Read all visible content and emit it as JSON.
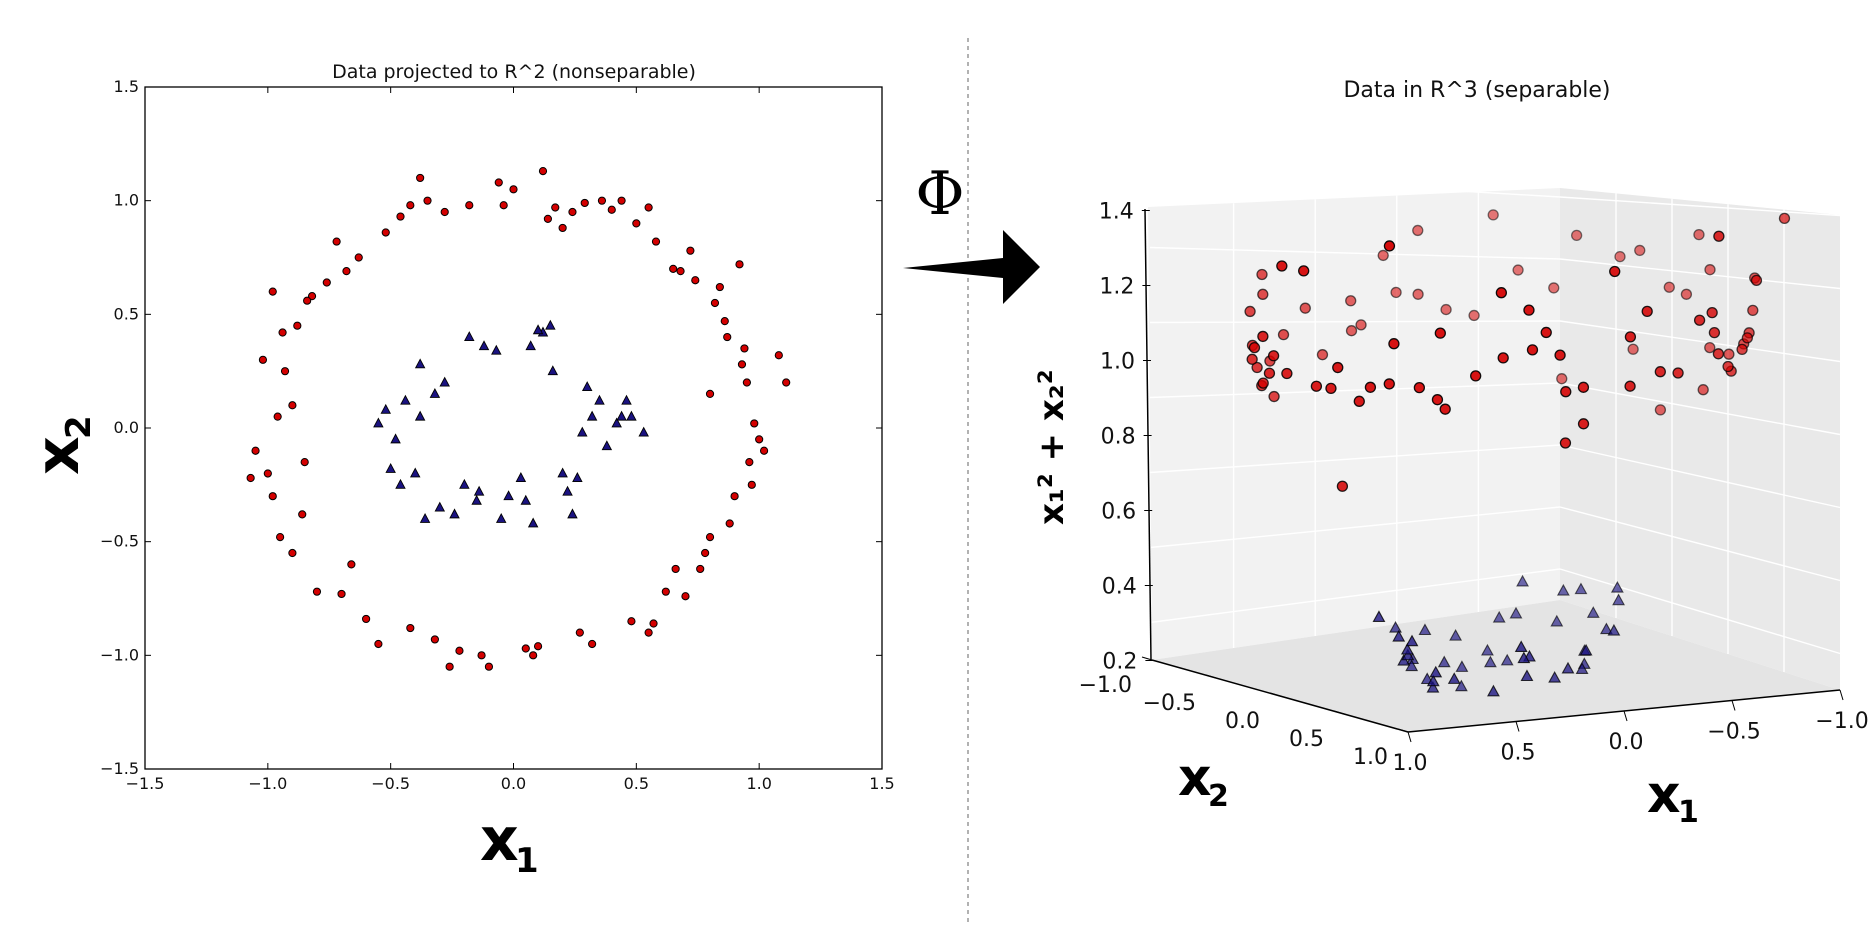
{
  "chart_data": [
    {
      "type": "scatter",
      "title": "Data projected to R^2 (nonseparable)",
      "xlabel": "x",
      "xlabel_sub": "1",
      "ylabel": "x",
      "ylabel_sub": "2",
      "xlim": [
        -1.5,
        1.5
      ],
      "ylim": [
        -1.5,
        1.5
      ],
      "xticks": [
        -1.5,
        -1.0,
        -0.5,
        0.0,
        0.5,
        1.0,
        1.5
      ],
      "yticks": [
        -1.5,
        -1.0,
        -0.5,
        0.0,
        0.5,
        1.0,
        1.5
      ],
      "xtick_labels": [
        "−1.5",
        "−1.0",
        "−0.5",
        "0.0",
        "0.5",
        "1.0",
        "1.5"
      ],
      "ytick_labels": [
        "−1.5",
        "−1.0",
        "−0.5",
        "0.0",
        "0.5",
        "1.0",
        "1.5"
      ],
      "grid": false,
      "series": [
        {
          "marker": "circle",
          "color": "#d40000",
          "points": [
            [
              1.11,
              0.2
            ],
            [
              1.08,
              0.32
            ],
            [
              1.02,
              -0.1
            ],
            [
              1.0,
              -0.05
            ],
            [
              0.98,
              0.02
            ],
            [
              0.97,
              -0.25
            ],
            [
              0.95,
              0.2
            ],
            [
              0.94,
              0.35
            ],
            [
              0.93,
              0.28
            ],
            [
              0.9,
              -0.3
            ],
            [
              0.88,
              -0.42
            ],
            [
              0.86,
              0.47
            ],
            [
              0.84,
              0.62
            ],
            [
              0.82,
              0.55
            ],
            [
              0.8,
              0.15
            ],
            [
              0.78,
              -0.55
            ],
            [
              0.76,
              -0.62
            ],
            [
              0.74,
              0.65
            ],
            [
              0.72,
              0.78
            ],
            [
              0.7,
              -0.74
            ],
            [
              0.68,
              0.69
            ],
            [
              0.65,
              0.7
            ],
            [
              0.62,
              -0.72
            ],
            [
              0.58,
              0.82
            ],
            [
              0.57,
              -0.86
            ],
            [
              0.55,
              0.97
            ],
            [
              0.5,
              0.9
            ],
            [
              0.48,
              -0.85
            ],
            [
              0.44,
              1.0
            ],
            [
              0.4,
              0.96
            ],
            [
              0.36,
              1.0
            ],
            [
              0.32,
              -0.95
            ],
            [
              0.29,
              0.99
            ],
            [
              0.27,
              -0.9
            ],
            [
              0.24,
              0.95
            ],
            [
              0.2,
              0.88
            ],
            [
              0.17,
              0.97
            ],
            [
              0.14,
              0.92
            ],
            [
              0.12,
              1.13
            ],
            [
              0.08,
              -1.0
            ],
            [
              0.05,
              -0.97
            ],
            [
              0.0,
              1.05
            ],
            [
              -0.04,
              0.98
            ],
            [
              -0.06,
              1.08
            ],
            [
              -0.1,
              -1.05
            ],
            [
              -0.13,
              -1.0
            ],
            [
              -0.18,
              0.98
            ],
            [
              -0.22,
              -0.98
            ],
            [
              -0.26,
              -1.05
            ],
            [
              -0.28,
              0.95
            ],
            [
              -0.32,
              -0.93
            ],
            [
              -0.35,
              1.0
            ],
            [
              -0.38,
              1.1
            ],
            [
              -0.42,
              0.98
            ],
            [
              -0.46,
              0.93
            ],
            [
              -0.52,
              0.86
            ],
            [
              -0.55,
              -0.95
            ],
            [
              -0.6,
              -0.84
            ],
            [
              -0.63,
              0.75
            ],
            [
              -0.68,
              0.69
            ],
            [
              -0.7,
              -0.73
            ],
            [
              -0.72,
              0.82
            ],
            [
              -0.76,
              0.64
            ],
            [
              -0.8,
              -0.72
            ],
            [
              -0.82,
              0.58
            ],
            [
              -0.84,
              0.56
            ],
            [
              -0.86,
              -0.38
            ],
            [
              -0.88,
              0.45
            ],
            [
              -0.9,
              -0.55
            ],
            [
              -0.93,
              0.25
            ],
            [
              -0.95,
              -0.48
            ],
            [
              -0.96,
              0.05
            ],
            [
              -0.98,
              -0.3
            ],
            [
              -1.0,
              -0.2
            ],
            [
              -1.02,
              0.3
            ],
            [
              -1.05,
              -0.1
            ],
            [
              -1.07,
              -0.22
            ],
            [
              -0.98,
              0.6
            ],
            [
              -0.94,
              0.42
            ],
            [
              -0.9,
              0.1
            ],
            [
              0.92,
              0.72
            ],
            [
              0.87,
              0.4
            ],
            [
              0.8,
              -0.48
            ],
            [
              0.66,
              -0.62
            ],
            [
              0.55,
              -0.9
            ],
            [
              0.1,
              -0.96
            ],
            [
              -0.42,
              -0.88
            ],
            [
              -0.66,
              -0.6
            ],
            [
              -0.85,
              -0.15
            ],
            [
              0.96,
              -0.15
            ]
          ]
        },
        {
          "marker": "triangle",
          "color": "#1a1280",
          "points": [
            [
              0.53,
              -0.02
            ],
            [
              0.48,
              0.05
            ],
            [
              0.46,
              0.12
            ],
            [
              0.42,
              0.02
            ],
            [
              0.38,
              -0.08
            ],
            [
              0.35,
              0.12
            ],
            [
              0.32,
              0.05
            ],
            [
              0.3,
              0.18
            ],
            [
              0.28,
              -0.02
            ],
            [
              0.26,
              -0.22
            ],
            [
              0.24,
              -0.38
            ],
            [
              0.22,
              -0.28
            ],
            [
              0.2,
              -0.2
            ],
            [
              0.16,
              0.25
            ],
            [
              0.15,
              0.45
            ],
            [
              0.12,
              0.42
            ],
            [
              0.1,
              0.43
            ],
            [
              0.07,
              0.36
            ],
            [
              0.05,
              -0.32
            ],
            [
              0.03,
              -0.22
            ],
            [
              -0.02,
              -0.3
            ],
            [
              -0.05,
              -0.4
            ],
            [
              -0.07,
              0.34
            ],
            [
              -0.12,
              0.36
            ],
            [
              -0.15,
              -0.32
            ],
            [
              -0.18,
              0.4
            ],
            [
              -0.2,
              -0.25
            ],
            [
              -0.24,
              -0.38
            ],
            [
              -0.28,
              0.2
            ],
            [
              -0.3,
              -0.35
            ],
            [
              -0.32,
              0.15
            ],
            [
              -0.36,
              -0.4
            ],
            [
              -0.38,
              0.28
            ],
            [
              -0.4,
              -0.2
            ],
            [
              -0.44,
              0.12
            ],
            [
              -0.46,
              -0.25
            ],
            [
              -0.48,
              -0.05
            ],
            [
              -0.5,
              -0.18
            ],
            [
              -0.52,
              0.08
            ],
            [
              -0.55,
              0.02
            ],
            [
              -0.14,
              -0.28
            ],
            [
              0.08,
              -0.42
            ],
            [
              0.44,
              0.05
            ],
            [
              -0.38,
              0.05
            ]
          ]
        }
      ]
    },
    {
      "type": "scatter",
      "title": "Data in R^3 (separable)",
      "xlabel": "x",
      "xlabel_sub": "1",
      "ylabel": "x",
      "ylabel_sub": "2",
      "zlabel": "x₁² + x₂²",
      "x_ticks": [
        1.0,
        0.5,
        0.0,
        -0.5,
        -1.0
      ],
      "x_tick_labels": [
        "1.0",
        "0.5",
        "0.0",
        "−0.5",
        "−1.0"
      ],
      "y_ticks": [
        -1.0,
        -0.5,
        0.0,
        0.5,
        1.0
      ],
      "y_tick_labels": [
        "−1.0",
        "−0.5",
        "0.0",
        "0.5",
        "1.0"
      ],
      "z_ticks": [
        0.2,
        0.4,
        0.6,
        0.8,
        1.0,
        1.2,
        1.4
      ],
      "z_tick_labels": [
        "0.2",
        "0.4",
        "0.6",
        "0.8",
        "1.0",
        "1.2",
        "1.4"
      ],
      "grid": true
    }
  ],
  "arrow_label": "Φ"
}
